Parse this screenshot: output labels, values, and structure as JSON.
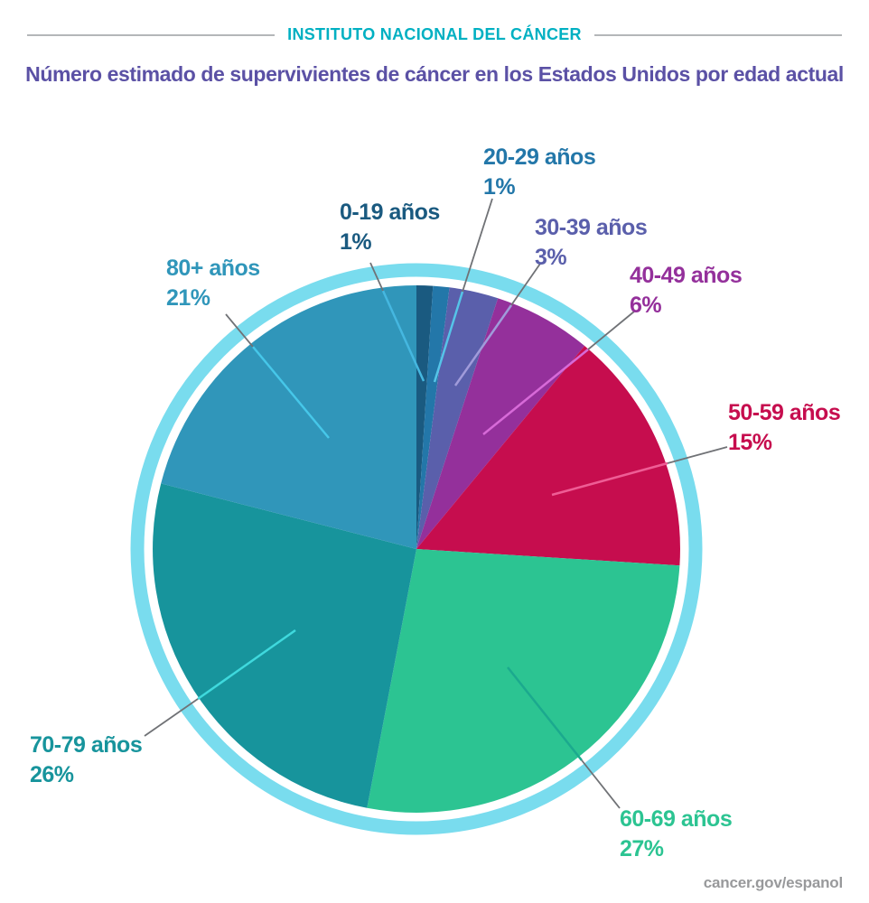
{
  "header": {
    "institute": "INSTITUTO NACIONAL DEL CÁNCER",
    "accent_color": "#00b0c2",
    "divider_color": "#b4b7b9"
  },
  "title": {
    "text": "Número estimado de supervivientes de cáncer en los Estados Unidos por edad actual",
    "color": "#5b51a5"
  },
  "footer": {
    "text": "cancer.gov/espanol",
    "color": "#98999b"
  },
  "chart_data": {
    "type": "pie",
    "title": "Número estimado de supervivientes de cáncer en los Estados Unidos por edad actual",
    "unit": "percent",
    "start_angle_deg": -90,
    "direction": "clockwise",
    "ring_color": "#79dcee",
    "leader_line_color": "#707276",
    "slices": [
      {
        "label": "0-19 años",
        "value": 1,
        "value_label": "1%",
        "color": "#1a5a80",
        "leader_tint": "#45b7e0"
      },
      {
        "label": "20-29 años",
        "value": 1,
        "value_label": "1%",
        "color": "#2377a9",
        "leader_tint": "#55c4e8"
      },
      {
        "label": "30-39 años",
        "value": 3,
        "value_label": "3%",
        "color": "#5a5fab",
        "leader_tint": "#a09bda"
      },
      {
        "label": "40-49 años",
        "value": 6,
        "value_label": "6%",
        "color": "#94309b",
        "leader_tint": "#d76ad8"
      },
      {
        "label": "50-59 años",
        "value": 15,
        "value_label": "15%",
        "color": "#c60d4e",
        "leader_tint": "#ee5d95"
      },
      {
        "label": "60-69 años",
        "value": 27,
        "value_label": "27%",
        "color": "#2cc492",
        "leader_tint": "#1ba98e"
      },
      {
        "label": "70-79 años",
        "value": 26,
        "value_label": "26%",
        "color": "#17949c",
        "leader_tint": "#3fd9dd"
      },
      {
        "label": "80+ años",
        "value": 21,
        "value_label": "21%",
        "color": "#3096ba",
        "leader_tint": "#46c7e9"
      }
    ]
  }
}
